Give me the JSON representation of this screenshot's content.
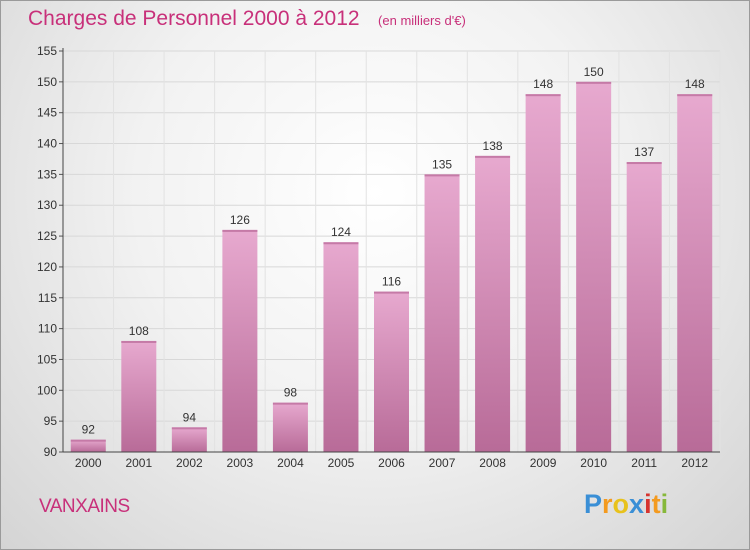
{
  "title": "Charges de Personnel 2000 à 2012",
  "subtitle": "(en milliers d'€)",
  "place": "VANXAINS",
  "logo": {
    "letters": [
      "P",
      "r",
      "o",
      "x",
      "i",
      "t",
      "i"
    ],
    "colors": [
      "#3a8fd6",
      "#f39a1f",
      "#e8c21c",
      "#3a8fd6",
      "#d6342f",
      "#f39a1f",
      "#86b83a"
    ]
  },
  "colors": {
    "bar_top": "#e7a9cf",
    "bar_bottom": "#b86b98",
    "text_accent": "#c8307a"
  },
  "chart_data": {
    "type": "bar",
    "categories": [
      "2000",
      "2001",
      "2002",
      "2003",
      "2004",
      "2005",
      "2006",
      "2007",
      "2008",
      "2009",
      "2010",
      "2011",
      "2012"
    ],
    "values": [
      92,
      108,
      94,
      126,
      98,
      124,
      116,
      135,
      138,
      148,
      150,
      137,
      148
    ],
    "yticks": [
      "90",
      "95",
      "100",
      "105",
      "110",
      "115",
      "120",
      "125",
      "130",
      "135",
      "140",
      "145",
      "150",
      "155"
    ],
    "ylim": [
      90,
      155
    ],
    "grid": true
  }
}
